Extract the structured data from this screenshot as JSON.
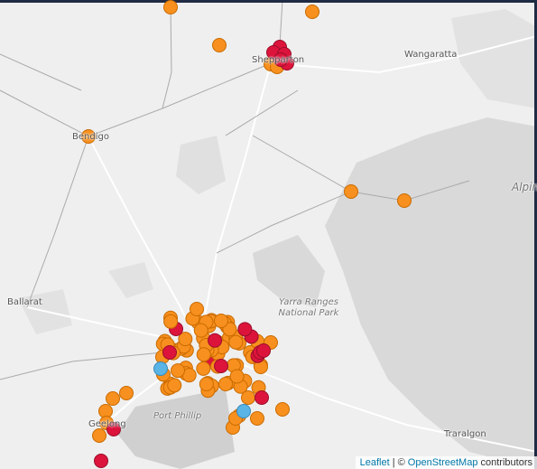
{
  "places": [
    {
      "label": "Shepparton"
    },
    {
      "label": "Wangaratta"
    },
    {
      "label": "Bendigo"
    },
    {
      "label": "Alpine"
    },
    {
      "label": "Ballarat"
    },
    {
      "label": "Yarra Ranges National Park"
    },
    {
      "label": "Port Phillip"
    },
    {
      "label": "Geelong"
    },
    {
      "label": "Traralgon"
    }
  ],
  "attribution": {
    "leaflet": "Leaflet",
    "separator": "| ©",
    "osm": "OpenStreetMap",
    "suffix": "contributors"
  }
}
